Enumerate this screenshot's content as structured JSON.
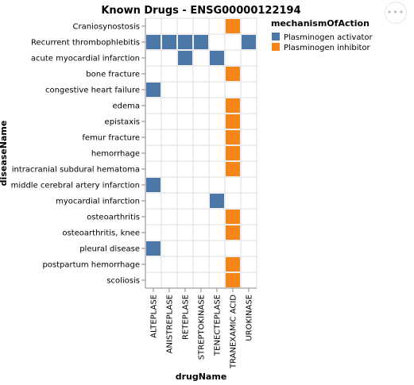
{
  "chart_data": {
    "type": "heatmap",
    "title": "Known Drugs - ENSG00000122194",
    "xlabel": "drugName",
    "ylabel": "diseaseName",
    "x_categories": [
      "ALTEPLASE",
      "ANISTREPLASE",
      "RETEPLASE",
      "STREPTOKINASE",
      "TENECTEPLASE",
      "TRANEXAMIC ACID",
      "UROKINASE"
    ],
    "y_categories": [
      "Craniosynostosis",
      "Recurrent thrombophlebitis",
      "acute myocardial infarction",
      "bone fracture",
      "congestive heart failure",
      "edema",
      "epistaxis",
      "femur fracture",
      "hemorrhage",
      "intracranial subdural hematoma",
      "middle cerebral artery infarction",
      "myocardial infarction",
      "osteoarthritis",
      "osteoarthritis, knee",
      "pleural disease",
      "postpartum hemorrhage",
      "scoliosis"
    ],
    "legend": {
      "title": "mechanismOfAction",
      "position": "right",
      "items": [
        {
          "label": "Plasminogen activator",
          "color": "#4c78a8"
        },
        {
          "label": "Plasminogen inhibitor",
          "color": "#f58518"
        }
      ]
    },
    "cells": [
      {
        "drug": "TRANEXAMIC ACID",
        "disease": "Craniosynostosis",
        "mechanism": "Plasminogen inhibitor"
      },
      {
        "drug": "ALTEPLASE",
        "disease": "Recurrent thrombophlebitis",
        "mechanism": "Plasminogen activator"
      },
      {
        "drug": "ANISTREPLASE",
        "disease": "Recurrent thrombophlebitis",
        "mechanism": "Plasminogen activator"
      },
      {
        "drug": "RETEPLASE",
        "disease": "Recurrent thrombophlebitis",
        "mechanism": "Plasminogen activator"
      },
      {
        "drug": "STREPTOKINASE",
        "disease": "Recurrent thrombophlebitis",
        "mechanism": "Plasminogen activator"
      },
      {
        "drug": "UROKINASE",
        "disease": "Recurrent thrombophlebitis",
        "mechanism": "Plasminogen activator"
      },
      {
        "drug": "RETEPLASE",
        "disease": "acute myocardial infarction",
        "mechanism": "Plasminogen activator"
      },
      {
        "drug": "TENECTEPLASE",
        "disease": "acute myocardial infarction",
        "mechanism": "Plasminogen activator"
      },
      {
        "drug": "TRANEXAMIC ACID",
        "disease": "bone fracture",
        "mechanism": "Plasminogen inhibitor"
      },
      {
        "drug": "ALTEPLASE",
        "disease": "congestive heart failure",
        "mechanism": "Plasminogen activator"
      },
      {
        "drug": "TRANEXAMIC ACID",
        "disease": "edema",
        "mechanism": "Plasminogen inhibitor"
      },
      {
        "drug": "TRANEXAMIC ACID",
        "disease": "epistaxis",
        "mechanism": "Plasminogen inhibitor"
      },
      {
        "drug": "TRANEXAMIC ACID",
        "disease": "femur fracture",
        "mechanism": "Plasminogen inhibitor"
      },
      {
        "drug": "TRANEXAMIC ACID",
        "disease": "hemorrhage",
        "mechanism": "Plasminogen inhibitor"
      },
      {
        "drug": "TRANEXAMIC ACID",
        "disease": "intracranial subdural hematoma",
        "mechanism": "Plasminogen inhibitor"
      },
      {
        "drug": "ALTEPLASE",
        "disease": "middle cerebral artery infarction",
        "mechanism": "Plasminogen activator"
      },
      {
        "drug": "TENECTEPLASE",
        "disease": "myocardial infarction",
        "mechanism": "Plasminogen activator"
      },
      {
        "drug": "TRANEXAMIC ACID",
        "disease": "osteoarthritis",
        "mechanism": "Plasminogen inhibitor"
      },
      {
        "drug": "TRANEXAMIC ACID",
        "disease": "osteoarthritis, knee",
        "mechanism": "Plasminogen inhibitor"
      },
      {
        "drug": "ALTEPLASE",
        "disease": "pleural disease",
        "mechanism": "Plasminogen activator"
      },
      {
        "drug": "TRANEXAMIC ACID",
        "disease": "postpartum hemorrhage",
        "mechanism": "Plasminogen inhibitor"
      },
      {
        "drug": "TRANEXAMIC ACID",
        "disease": "scoliosis",
        "mechanism": "Plasminogen inhibitor"
      }
    ]
  },
  "menu": {
    "icon": "more-dots-icon",
    "glyph": "•••"
  }
}
